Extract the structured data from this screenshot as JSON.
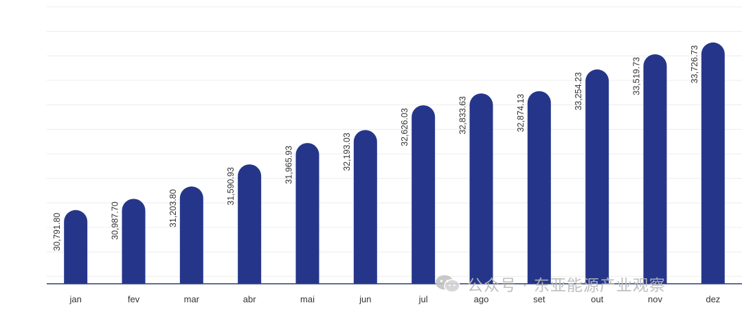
{
  "chart_data": {
    "type": "bar",
    "categories": [
      "jan",
      "fev",
      "mar",
      "abr",
      "mai",
      "jun",
      "jul",
      "ago",
      "set",
      "out",
      "nov",
      "dez"
    ],
    "values": [
      30791.8,
      30987.7,
      31203.8,
      31590.93,
      31965.93,
      32193.03,
      32626.03,
      32833.63,
      32874.13,
      33254.23,
      33519.73,
      33726.73
    ],
    "value_labels": [
      "30,791.80",
      "30,987.70",
      "31,203.80",
      "31,590.93",
      "31,965.93",
      "32,193.03",
      "32,626.03",
      "32,833.63",
      "32,874.13",
      "33,254.23",
      "33,519.73",
      "33,726.73"
    ],
    "title": "",
    "xlabel": "",
    "ylabel": "",
    "ylim": [
      29500,
      34350
    ],
    "grid": true,
    "legend": "none",
    "bar_color": "#25368a",
    "bar_style": "rounded-top"
  },
  "watermark": {
    "text": "公众号 · 东亚能源产业观察",
    "icon": "wechat-icon"
  }
}
